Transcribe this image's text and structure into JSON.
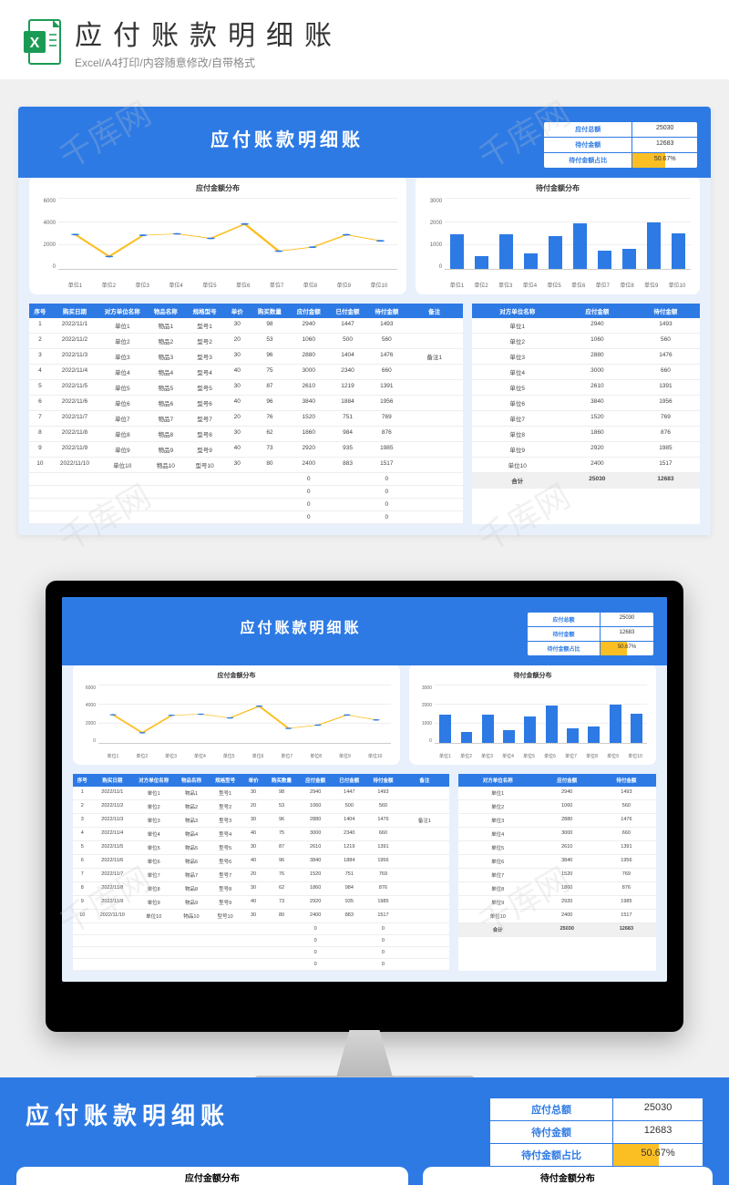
{
  "topbar": {
    "title": "应付账款明细账",
    "subtitle": "Excel/A4打印/内容随意修改/自带格式"
  },
  "watermark_text": "千库网",
  "template": {
    "title": "应付账款明细账",
    "summary": [
      {
        "label": "应付总额",
        "value": "25030"
      },
      {
        "label": "待付金额",
        "value": "12683"
      },
      {
        "label": "待付金额占比",
        "value": "50.67%",
        "pct": 50.67
      }
    ],
    "line_chart": {
      "title": "应付金额分布",
      "type": "line",
      "y_ticks": [
        0,
        2000,
        4000,
        6000
      ],
      "ymax": 6000,
      "categories": [
        "单位1",
        "单位2",
        "单位3",
        "单位4",
        "单位5",
        "单位6",
        "单位7",
        "单位8",
        "单位9",
        "单位10"
      ],
      "values": [
        2940,
        1060,
        2880,
        3000,
        2610,
        3840,
        1520,
        1860,
        2920,
        2400
      ],
      "line_color": "#fbbf24",
      "marker_color": "#2d7ae5",
      "grid_color": "#eeeeee",
      "background": "#ffffff"
    },
    "bar_chart": {
      "title": "待付金额分布",
      "type": "bar",
      "y_ticks": [
        0,
        1000,
        2000,
        3000
      ],
      "ymax": 3000,
      "categories": [
        "单位1",
        "单位2",
        "单位3",
        "单位4",
        "单位5",
        "单位6",
        "单位7",
        "单位8",
        "单位9",
        "单位10"
      ],
      "values": [
        1493,
        560,
        1476,
        660,
        1391,
        1956,
        769,
        876,
        1985,
        1517
      ],
      "bar_color": "#2d7ae5",
      "grid_color": "#eeeeee",
      "background": "#ffffff"
    },
    "main_table": {
      "columns": [
        "序号",
        "购买日期",
        "对方单位名称",
        "物品名称",
        "规格型号",
        "单价",
        "购买数量",
        "应付金额",
        "已付金额",
        "待付金额",
        "备注"
      ],
      "col_widths": [
        "5%",
        "11%",
        "11%",
        "9%",
        "9%",
        "6%",
        "9%",
        "9%",
        "9%",
        "9%",
        "13%"
      ],
      "rows": [
        [
          "1",
          "2022/11/1",
          "单位1",
          "物品1",
          "型号1",
          "30",
          "98",
          "2940",
          "1447",
          "1493",
          ""
        ],
        [
          "2",
          "2022/11/2",
          "单位2",
          "物品2",
          "型号2",
          "20",
          "53",
          "1060",
          "500",
          "560",
          ""
        ],
        [
          "3",
          "2022/11/3",
          "单位3",
          "物品3",
          "型号3",
          "30",
          "96",
          "2880",
          "1404",
          "1476",
          "备注1"
        ],
        [
          "4",
          "2022/11/4",
          "单位4",
          "物品4",
          "型号4",
          "40",
          "75",
          "3000",
          "2340",
          "660",
          ""
        ],
        [
          "5",
          "2022/11/5",
          "单位5",
          "物品5",
          "型号5",
          "30",
          "87",
          "2610",
          "1219",
          "1391",
          ""
        ],
        [
          "6",
          "2022/11/6",
          "单位6",
          "物品6",
          "型号6",
          "40",
          "96",
          "3840",
          "1884",
          "1956",
          ""
        ],
        [
          "7",
          "2022/11/7",
          "单位7",
          "物品7",
          "型号7",
          "20",
          "76",
          "1520",
          "751",
          "769",
          ""
        ],
        [
          "8",
          "2022/11/8",
          "单位8",
          "物品8",
          "型号8",
          "30",
          "62",
          "1860",
          "984",
          "876",
          ""
        ],
        [
          "9",
          "2022/11/9",
          "单位9",
          "物品9",
          "型号9",
          "40",
          "73",
          "2920",
          "935",
          "1985",
          ""
        ],
        [
          "10",
          "2022/11/10",
          "单位10",
          "物品10",
          "型号10",
          "30",
          "80",
          "2400",
          "883",
          "1517",
          ""
        ],
        [
          "",
          "",
          "",
          "",
          "",
          "",
          "",
          "0",
          "",
          "0",
          ""
        ],
        [
          "",
          "",
          "",
          "",
          "",
          "",
          "",
          "0",
          "",
          "0",
          ""
        ],
        [
          "",
          "",
          "",
          "",
          "",
          "",
          "",
          "0",
          "",
          "0",
          ""
        ],
        [
          "",
          "",
          "",
          "",
          "",
          "",
          "",
          "0",
          "",
          "0",
          ""
        ]
      ]
    },
    "side_table": {
      "columns": [
        "对方单位名称",
        "应付金额",
        "待付金额"
      ],
      "col_widths": [
        "40%",
        "30%",
        "30%"
      ],
      "rows": [
        [
          "单位1",
          "2940",
          "1493"
        ],
        [
          "单位2",
          "1060",
          "560"
        ],
        [
          "单位3",
          "2880",
          "1476"
        ],
        [
          "单位4",
          "3000",
          "660"
        ],
        [
          "单位5",
          "2610",
          "1391"
        ],
        [
          "单位6",
          "3840",
          "1956"
        ],
        [
          "单位7",
          "1520",
          "769"
        ],
        [
          "单位8",
          "1860",
          "876"
        ],
        [
          "单位9",
          "2920",
          "1985"
        ],
        [
          "单位10",
          "2400",
          "1517"
        ]
      ],
      "total_row": [
        "合计",
        "25030",
        "12683"
      ]
    }
  },
  "bottom": {
    "title": "应付账款明细账",
    "chart1_title": "应付金额分布",
    "chart2_title": "待付金额分布",
    "left_y_top": "6000"
  },
  "colors": {
    "primary": "#2d7ae5",
    "accent": "#fbbf24",
    "page_bg": "#e8f0fc",
    "grid": "#eeeeee"
  }
}
